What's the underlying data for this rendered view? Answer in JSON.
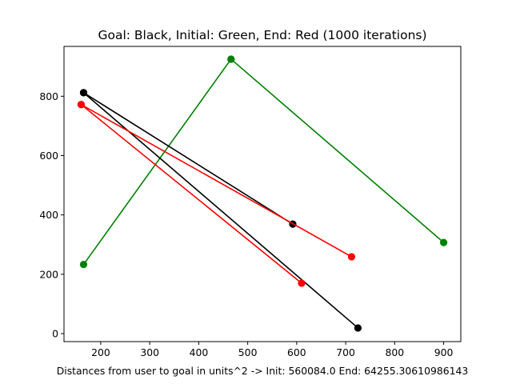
{
  "chart_data": {
    "type": "line",
    "title": "Goal: Black, Initial: Green, End: Red (1000 iterations)",
    "xlabel": "Distances from user to goal in units^2 -> Init: 560084.0 End: 64255.30610986143",
    "ylabel": "",
    "xlim": [
      125,
      935
    ],
    "ylim": [
      -27,
      968
    ],
    "xticks": [
      200,
      300,
      400,
      500,
      600,
      700,
      800,
      900
    ],
    "yticks": [
      0,
      200,
      400,
      600,
      800
    ],
    "grid": false,
    "series": [
      {
        "color": "#008000",
        "segments": [
          [
            [
              466,
              925
            ],
            [
              165,
              233
            ]
          ],
          [
            [
              466,
              925
            ],
            [
              900,
              307
            ]
          ]
        ]
      },
      {
        "color": "#000000",
        "segments": [
          [
            [
              165,
              812
            ],
            [
              592,
              369
            ]
          ],
          [
            [
              165,
              812
            ],
            [
              725,
              19
            ]
          ]
        ]
      },
      {
        "color": "#ff0000",
        "segments": [
          [
            [
              160,
              772
            ],
            [
              712,
              259
            ]
          ],
          [
            [
              160,
              772
            ],
            [
              610,
              170
            ]
          ]
        ]
      }
    ]
  }
}
